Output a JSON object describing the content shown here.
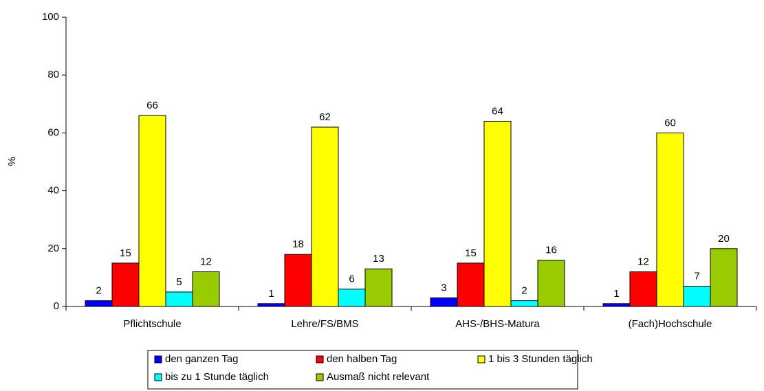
{
  "chart_data": {
    "type": "bar",
    "categories": [
      "Pflichtschule",
      "Lehre/FS/BMS",
      "AHS-/BHS-Matura",
      "(Fach)Hochschule"
    ],
    "series": [
      {
        "name": "den ganzen Tag",
        "color": "#0000ff",
        "values": [
          2,
          1,
          3,
          1
        ]
      },
      {
        "name": "den halben Tag",
        "color": "#ff0000",
        "values": [
          15,
          18,
          15,
          12
        ]
      },
      {
        "name": "1 bis 3 Stunden täglich",
        "color": "#ffff00",
        "values": [
          66,
          62,
          64,
          60
        ]
      },
      {
        "name": "bis zu 1 Stunde täglich",
        "color": "#00ffff",
        "values": [
          5,
          6,
          2,
          7
        ]
      },
      {
        "name": "Ausmaß nicht relevant",
        "color": "#99cc00",
        "values": [
          12,
          13,
          16,
          20
        ]
      }
    ],
    "y_label": "%",
    "ylim": [
      0,
      100
    ],
    "yticks": [
      0,
      20,
      40,
      60,
      80,
      100
    ]
  }
}
